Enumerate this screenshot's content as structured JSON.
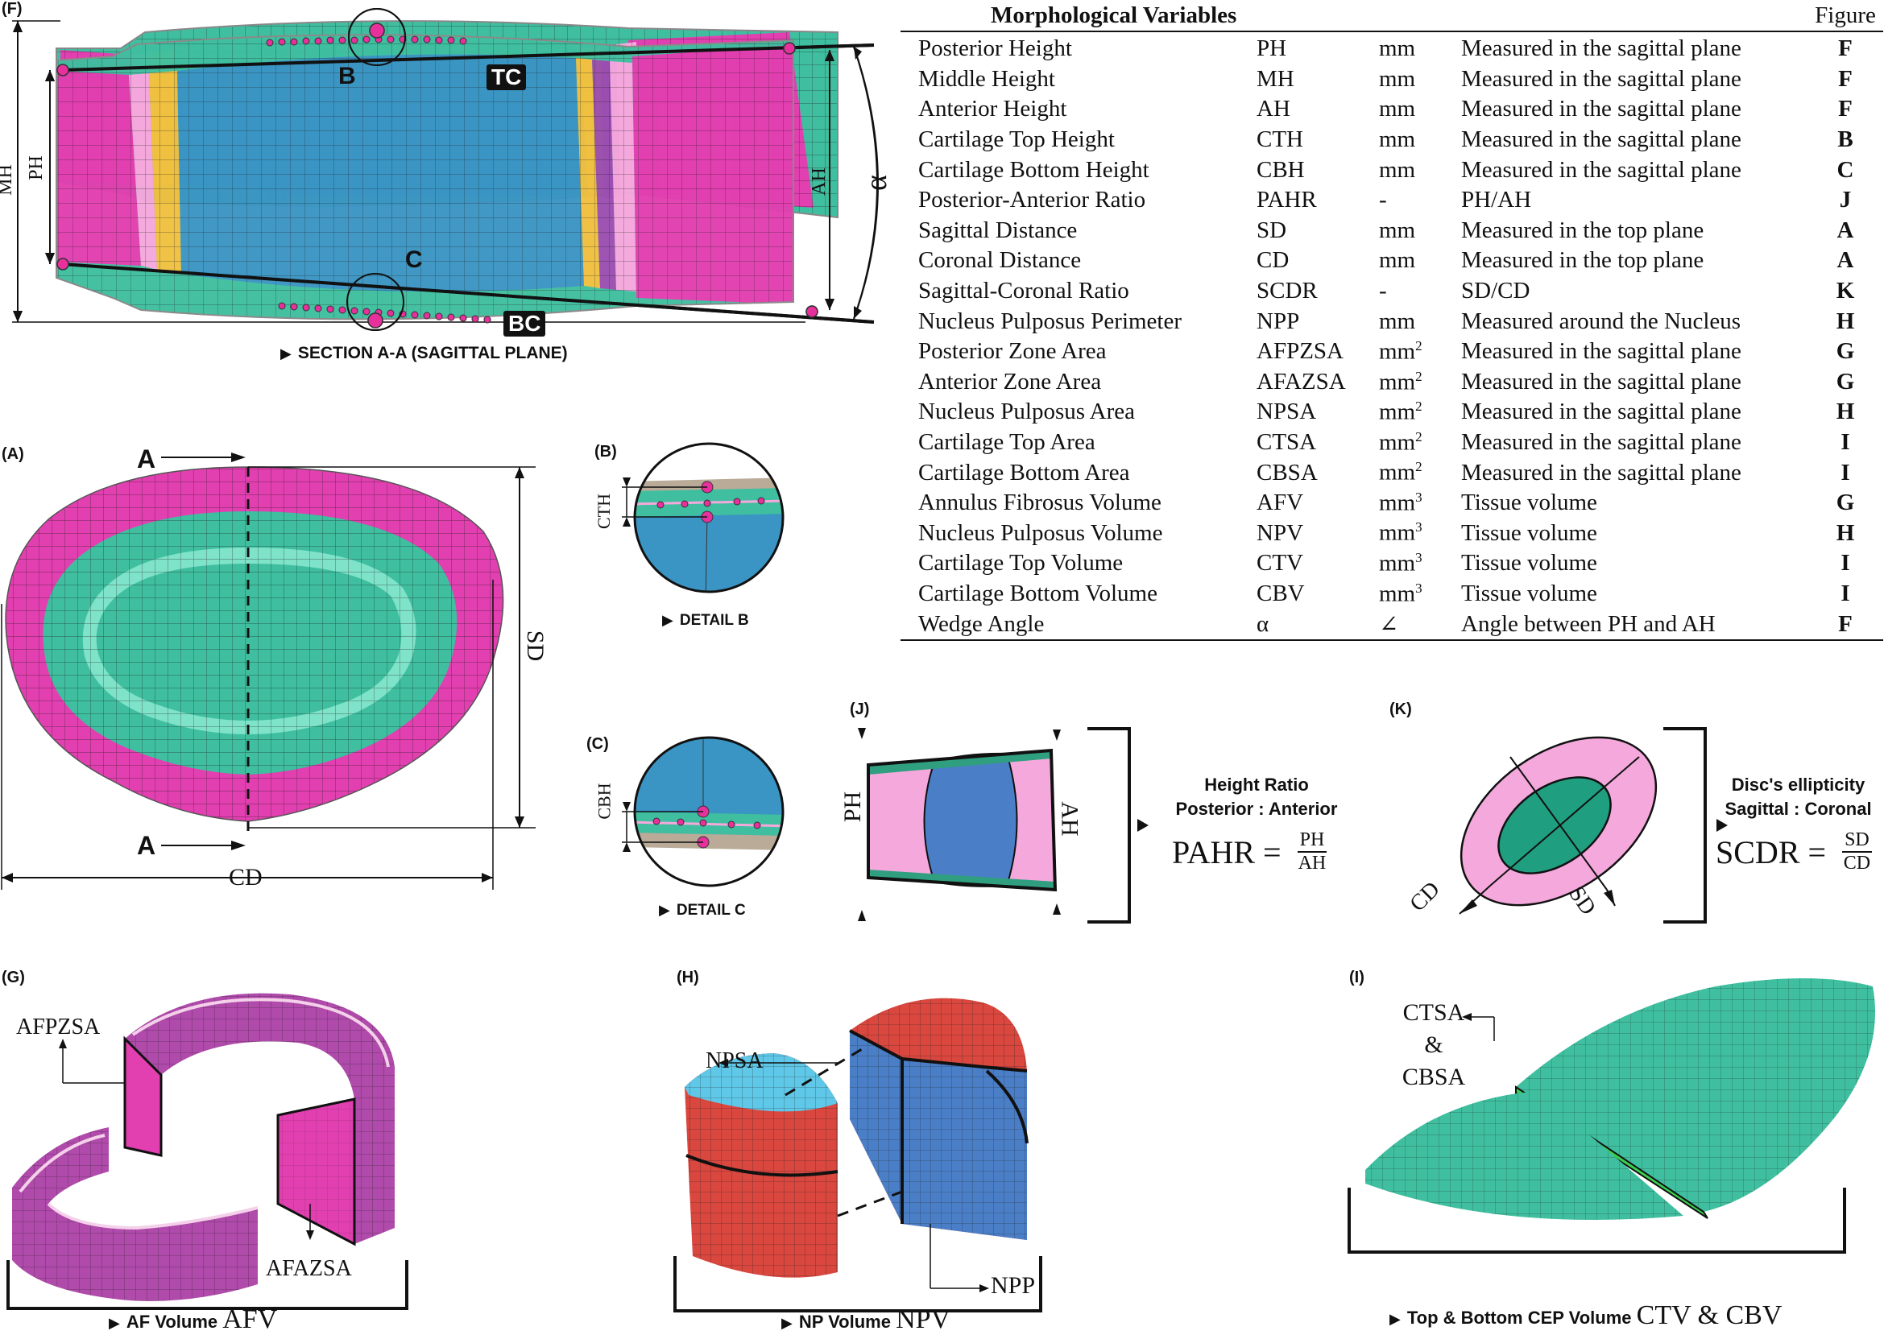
{
  "panel_labels": {
    "F": "(F)",
    "A": "(A)",
    "B": "(B)",
    "C": "(C)",
    "J": "(J)",
    "K": "(K)",
    "G": "(G)",
    "H": "(H)",
    "I": "(I)"
  },
  "section_f": {
    "caption": "SECTION A-A (SAGITTAL PLANE)",
    "marker_B": "B",
    "marker_C": "C",
    "badge_TC": "TC",
    "badge_BC": "BC",
    "dim_MH": "MH",
    "dim_PH": "PH",
    "dim_AH": "AH",
    "angle": "α"
  },
  "panel_a": {
    "section_top": "A",
    "section_bottom": "A",
    "dim_SD": "SD",
    "dim_CD": "CD"
  },
  "panel_b": {
    "caption": "DETAIL B",
    "dim": "CTH"
  },
  "panel_c": {
    "caption": "DETAIL C",
    "dim": "CBH"
  },
  "panel_j": {
    "title_line1": "Height Ratio",
    "title_line2": "Posterior : Anterior",
    "lhs": "PAHR",
    "num": "PH",
    "den": "AH",
    "dim_PH": "PH",
    "dim_AH": "AH"
  },
  "panel_k": {
    "title_line1": "Disc's ellipticity",
    "title_line2": "Sagittal : Coronal",
    "lhs": "SCDR",
    "num": "SD",
    "den": "CD",
    "axis_CD": "CD",
    "axis_SD": "SD"
  },
  "panel_g": {
    "caption_bold": "AF Volume",
    "caption_serif": "AFV",
    "label_top": "AFPZSA",
    "label_bottom": "AFAZSA"
  },
  "panel_h": {
    "caption_bold": "NP Volume",
    "caption_serif": "NPV",
    "label_top": "NPSA",
    "label_bottom": "NPP"
  },
  "panel_i": {
    "caption_bold": "Top & Bottom CEP Volume",
    "caption_serif": "CTV & CBV",
    "label_line1": "CTSA",
    "label_line2": "&",
    "label_line3": "CBSA"
  },
  "table": {
    "header": "Morphological Variables",
    "header_fig": "Figure",
    "rows": [
      {
        "name": "Posterior Height",
        "abbr": "PH",
        "unit": "mm",
        "sup": "",
        "desc": "Measured in the sagittal plane",
        "fig": "F"
      },
      {
        "name": "Middle Height",
        "abbr": "MH",
        "unit": "mm",
        "sup": "",
        "desc": "Measured in the sagittal plane",
        "fig": "F"
      },
      {
        "name": "Anterior Height",
        "abbr": "AH",
        "unit": "mm",
        "sup": "",
        "desc": "Measured in the sagittal plane",
        "fig": "F"
      },
      {
        "name": "Cartilage Top Height",
        "abbr": "CTH",
        "unit": "mm",
        "sup": "",
        "desc": "Measured in the sagittal plane",
        "fig": "B"
      },
      {
        "name": "Cartilage Bottom Height",
        "abbr": "CBH",
        "unit": "mm",
        "sup": "",
        "desc": "Measured in the sagittal plane",
        "fig": "C"
      },
      {
        "name": "Posterior-Anterior Ratio",
        "abbr": "PAHR",
        "unit": "-",
        "sup": "",
        "desc": "PH/AH",
        "fig": "J"
      },
      {
        "name": "Sagittal Distance",
        "abbr": "SD",
        "unit": "mm",
        "sup": "",
        "desc": "Measured in the top plane",
        "fig": "A"
      },
      {
        "name": "Coronal Distance",
        "abbr": "CD",
        "unit": "mm",
        "sup": "",
        "desc": "Measured in the top plane",
        "fig": "A"
      },
      {
        "name": "Sagittal-Coronal Ratio",
        "abbr": "SCDR",
        "unit": "-",
        "sup": "",
        "desc": "SD/CD",
        "fig": "K"
      },
      {
        "name": "Nucleus Pulposus Perimeter",
        "abbr": "NPP",
        "unit": "mm",
        "sup": "",
        "desc": "Measured around the Nucleus",
        "fig": "H"
      },
      {
        "name": "Posterior Zone Area",
        "abbr": "AFPZSA",
        "unit": "mm",
        "sup": "2",
        "desc": "Measured in the sagittal plane",
        "fig": "G"
      },
      {
        "name": "Anterior Zone Area",
        "abbr": "AFAZSA",
        "unit": "mm",
        "sup": "2",
        "desc": "Measured in the sagittal plane",
        "fig": "G"
      },
      {
        "name": "Nucleus Pulposus Area",
        "abbr": "NPSA",
        "unit": "mm",
        "sup": "2",
        "desc": "Measured in the sagittal plane",
        "fig": "H"
      },
      {
        "name": "Cartilage Top Area",
        "abbr": "CTSA",
        "unit": "mm",
        "sup": "2",
        "desc": "Measured in the sagittal plane",
        "fig": "I"
      },
      {
        "name": "Cartilage Bottom Area",
        "abbr": "CBSA",
        "unit": "mm",
        "sup": "2",
        "desc": "Measured in the sagittal plane",
        "fig": "I"
      },
      {
        "name": "Annulus Fibrosus Volume",
        "abbr": "AFV",
        "unit": "mm",
        "sup": "3",
        "desc": "Tissue volume",
        "fig": "G"
      },
      {
        "name": "Nucleus Pulposus Volume",
        "abbr": "NPV",
        "unit": "mm",
        "sup": "3",
        "desc": "Tissue volume",
        "fig": "H"
      },
      {
        "name": "Cartilage Top Volume",
        "abbr": "CTV",
        "unit": "mm",
        "sup": "3",
        "desc": "Tissue volume",
        "fig": "I"
      },
      {
        "name": "Cartilage Bottom Volume",
        "abbr": "CBV",
        "unit": "mm",
        "sup": "3",
        "desc": "Tissue volume",
        "fig": "I"
      },
      {
        "name": "Wedge Angle",
        "abbr": "α",
        "unit": "∠",
        "sup": "",
        "desc": "Angle between PH and AH",
        "fig": "F"
      }
    ]
  },
  "colors": {
    "annulus": "#e23fb0",
    "annulus_light": "#f4a8dc",
    "nucleus": "#3b95c4",
    "cartilage": "#3fbf9f",
    "cartilage_light": "#7fe3c9",
    "marker": "#e8309c",
    "np_red": "#d9473f",
    "np_blue": "#4a7fc7"
  }
}
